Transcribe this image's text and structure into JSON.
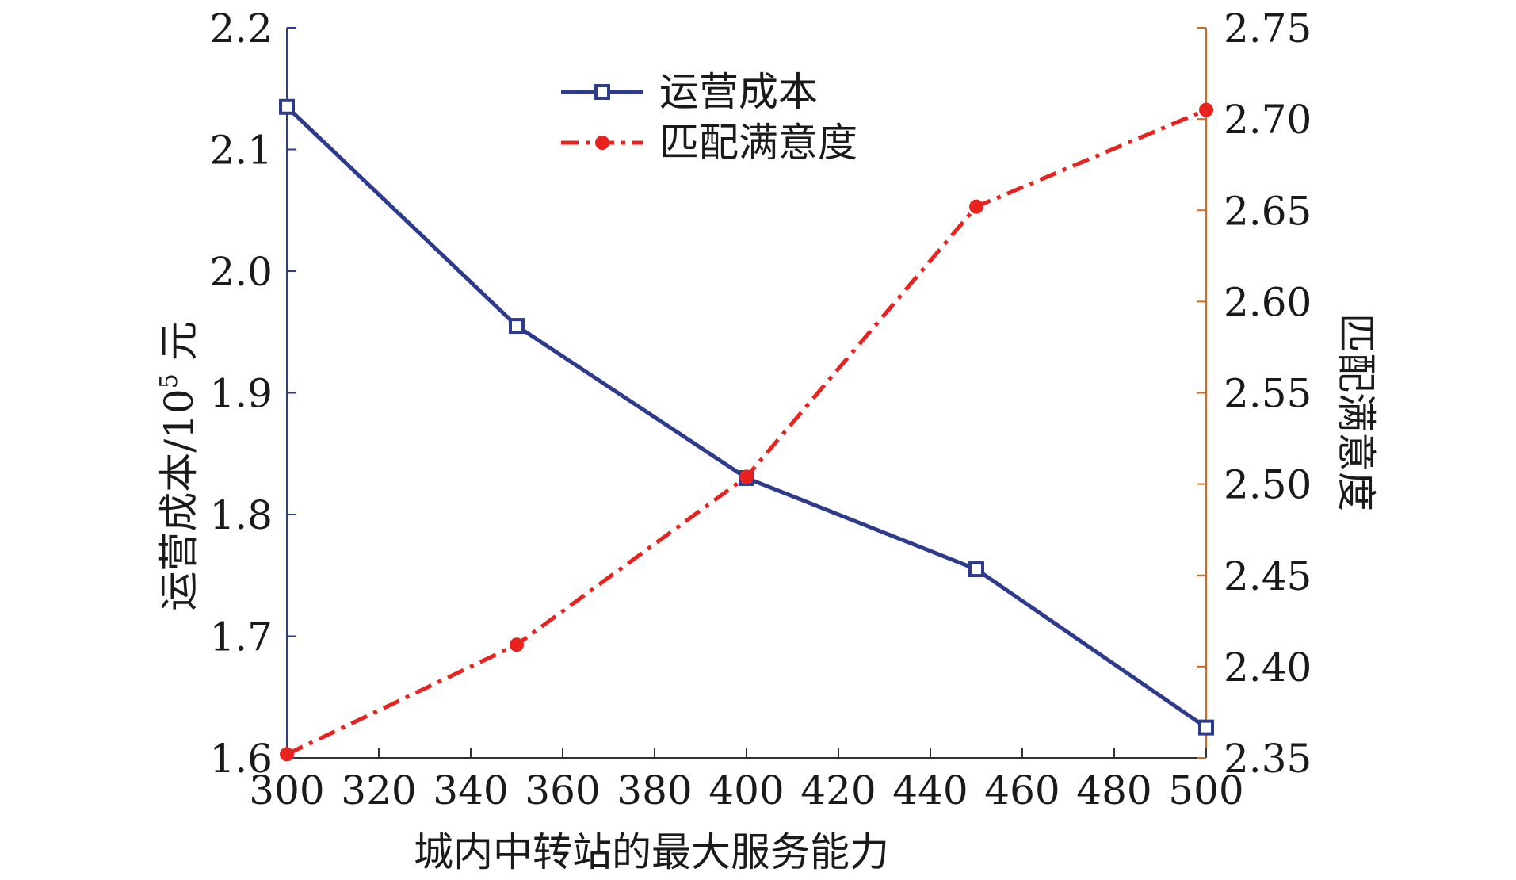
{
  "chart_data": {
    "type": "line",
    "x": [
      300,
      350,
      400,
      450,
      500
    ],
    "xlabel": "城内中转站的最大服务能力",
    "xlim": [
      300,
      500
    ],
    "xticks": [
      "300",
      "320",
      "340",
      "360",
      "380",
      "400",
      "420",
      "440",
      "460",
      "480",
      "500"
    ],
    "ylabel_left": "运营成本/10",
    "ylabel_left_sup": "5",
    "ylabel_left_unit": " 元",
    "ylim_left": [
      1.6,
      2.2
    ],
    "yticks_left": [
      "1.6",
      "1.7",
      "1.8",
      "1.9",
      "2.0",
      "2.1",
      "2.2"
    ],
    "ylabel_right": "匹配满意度",
    "ylim_right": [
      2.35,
      2.75
    ],
    "yticks_right": [
      "2.35",
      "2.40",
      "2.45",
      "2.50",
      "2.55",
      "2.60",
      "2.65",
      "2.70",
      "2.75"
    ],
    "grid": false,
    "legend_position": "top-center",
    "series": [
      {
        "name": "运营成本",
        "axis": "left",
        "values": [
          2.135,
          1.955,
          1.83,
          1.755,
          1.625
        ],
        "color": "#2e3a8c",
        "line_style": "solid",
        "marker": "square"
      },
      {
        "name": "匹配满意度",
        "axis": "right",
        "values": [
          2.352,
          2.412,
          2.504,
          2.652,
          2.705
        ],
        "color": "#e8231f",
        "line_style": "dash-dot",
        "marker": "circle"
      }
    ],
    "axis_colors": {
      "left": "#2e3a8c",
      "right": "#d2691e",
      "bottom": "#333333"
    }
  }
}
